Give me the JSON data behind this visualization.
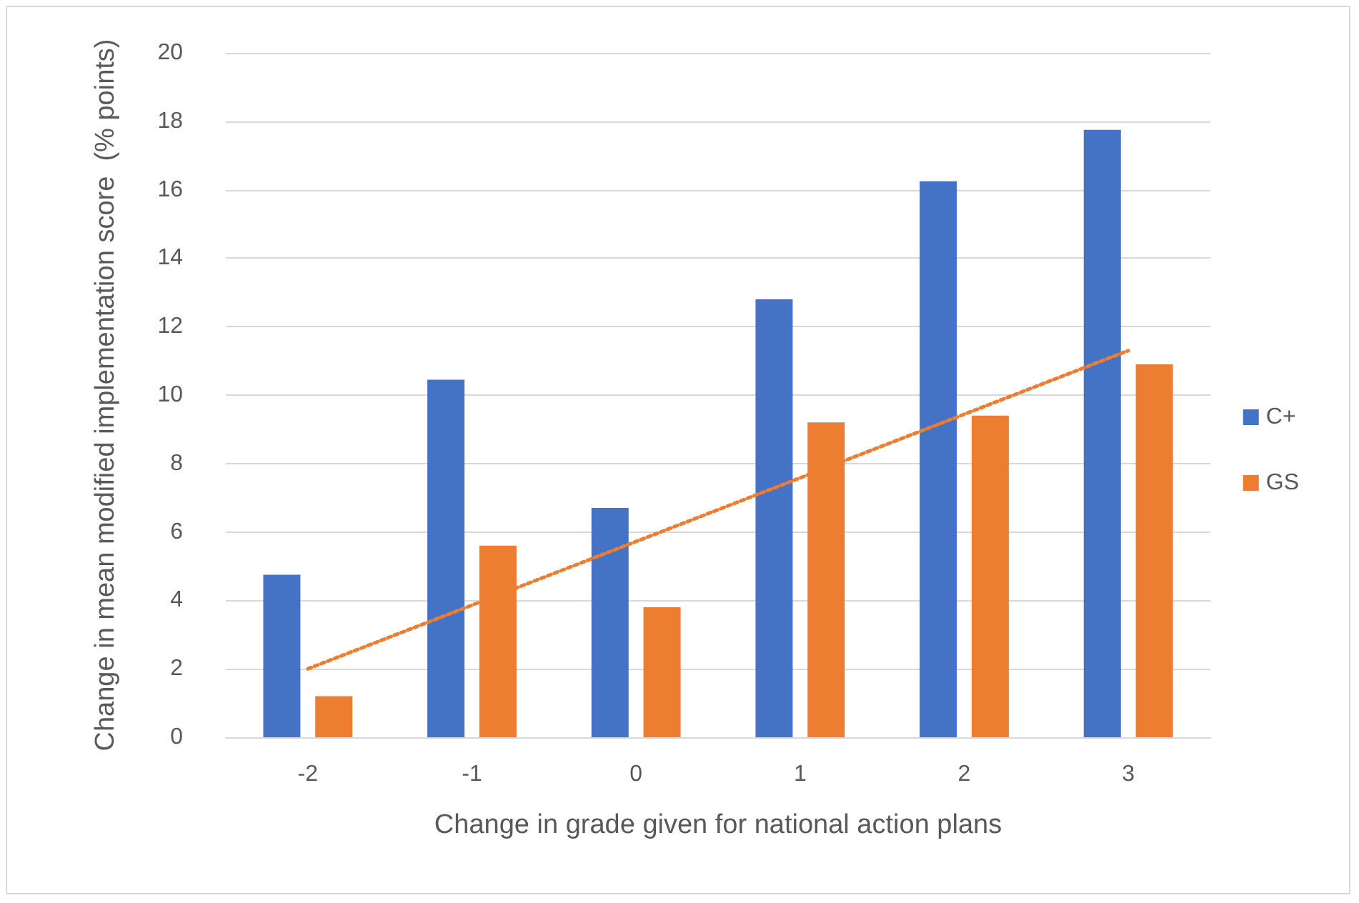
{
  "chart_data": {
    "type": "bar",
    "xlabel": "Change in grade given for national action plans",
    "ylabel": "Change in mean modified implementation score  (% points)",
    "categories": [
      "-2",
      "-1",
      "0",
      "1",
      "2",
      "3"
    ],
    "series": [
      {
        "name": "C+",
        "color": "#4472c4",
        "values": [
          4.75,
          10.45,
          6.7,
          12.8,
          16.25,
          17.75
        ]
      },
      {
        "name": "GS",
        "color": "#ed7d31",
        "values": [
          1.2,
          5.6,
          3.8,
          9.2,
          9.4,
          10.9
        ]
      },
      {
        "type": "line",
        "color": "#ed7d31",
        "x": [
          "-2",
          "3"
        ],
        "values": [
          2.0,
          11.3
        ],
        "line_style": "dotted",
        "marker": "none"
      }
    ],
    "ylim": [
      0,
      20
    ],
    "yticks": [
      0,
      2,
      4,
      6,
      8,
      10,
      12,
      14,
      16,
      18,
      20
    ],
    "grid": "y",
    "legend": "right"
  }
}
